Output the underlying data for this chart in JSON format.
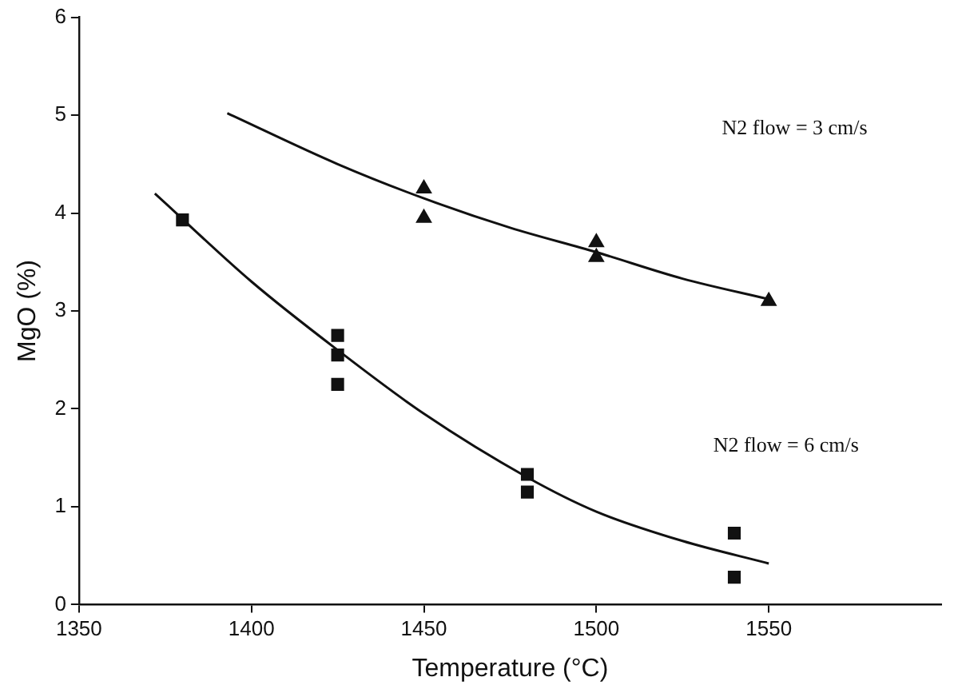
{
  "chart_data": {
    "type": "scatter",
    "xlabel": "Temperature (°C)",
    "ylabel": "MgO (%)",
    "xlim": [
      1350,
      1600
    ],
    "xticks": [
      1350,
      1400,
      1450,
      1500,
      1550
    ],
    "ylim": [
      0,
      6
    ],
    "yticks": [
      0,
      1,
      2,
      3,
      4,
      5,
      6
    ],
    "grid": false,
    "legend": false,
    "series": [
      {
        "type": "scatter",
        "marker": "square",
        "color": "#111111",
        "x": [
          1380,
          1425,
          1425,
          1425,
          1480,
          1480,
          1540,
          1540
        ],
        "values": [
          3.93,
          2.75,
          2.55,
          2.25,
          1.33,
          1.15,
          0.73,
          0.28
        ]
      },
      {
        "type": "scatter",
        "marker": "triangle",
        "color": "#111111",
        "x": [
          1450,
          1450,
          1500,
          1500,
          1550
        ],
        "values": [
          4.25,
          3.95,
          3.7,
          3.55,
          3.1
        ]
      },
      {
        "type": "line",
        "marker": "none",
        "line_style": "solid",
        "color": "#111111",
        "x": [
          1372,
          1400,
          1425,
          1450,
          1480,
          1500,
          1525,
          1550
        ],
        "values": [
          4.2,
          3.3,
          2.6,
          1.95,
          1.3,
          0.95,
          0.65,
          0.42
        ]
      },
      {
        "type": "line",
        "marker": "none",
        "line_style": "solid",
        "color": "#111111",
        "x": [
          1393,
          1425,
          1450,
          1475,
          1500,
          1525,
          1550
        ],
        "values": [
          5.02,
          4.5,
          4.15,
          3.85,
          3.6,
          3.33,
          3.12
        ]
      }
    ],
    "annotations": [
      "N2 flow = 3 cm/s",
      "N2 flow = 6 cm/s"
    ]
  }
}
